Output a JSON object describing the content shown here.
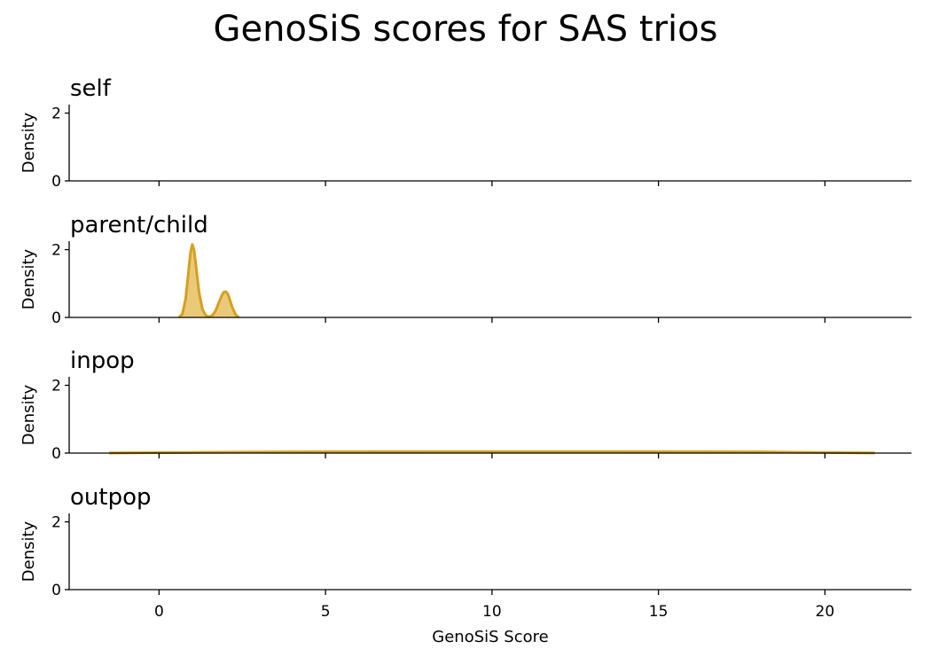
{
  "chart_data": {
    "type": "area",
    "title": "GenoSiS scores for SAS trios",
    "xlabel": "GenoSiS Score",
    "ylabel": "Density",
    "xlim": [
      -2.7,
      22.6
    ],
    "ylim": [
      0,
      2.25
    ],
    "xticks": [
      0,
      5,
      10,
      15,
      20
    ],
    "yticks": [
      0,
      2
    ],
    "grid": false,
    "legend": false,
    "fill_color": "#E3B84E",
    "line_color": "#D4A020",
    "panels": [
      {
        "name": "self",
        "series": []
      },
      {
        "name": "parent/child",
        "series": [
          {
            "x": [
              0.6,
              0.7,
              0.8,
              0.9,
              0.95,
              1.0,
              1.05,
              1.1,
              1.2,
              1.3,
              1.4,
              1.5,
              1.6,
              1.7,
              1.8,
              1.9,
              1.95,
              2.0,
              2.05,
              2.1,
              2.2,
              2.3,
              2.4
            ],
            "y": [
              0.0,
              0.1,
              0.55,
              1.5,
              1.95,
              2.15,
              2.0,
              1.6,
              0.75,
              0.25,
              0.06,
              0.02,
              0.06,
              0.2,
              0.45,
              0.68,
              0.75,
              0.76,
              0.72,
              0.6,
              0.3,
              0.08,
              0.0
            ]
          }
        ]
      },
      {
        "name": "inpop",
        "series": [
          {
            "x": [
              -1.5,
              0.0,
              2.0,
              4.0,
              6.0,
              8.0,
              10.0,
              12.0,
              14.0,
              16.0,
              18.0,
              20.0,
              21.5
            ],
            "y": [
              0.003,
              0.012,
              0.025,
              0.035,
              0.04,
              0.042,
              0.043,
              0.043,
              0.042,
              0.04,
              0.035,
              0.015,
              0.003
            ]
          }
        ]
      },
      {
        "name": "outpop",
        "series": []
      }
    ]
  }
}
